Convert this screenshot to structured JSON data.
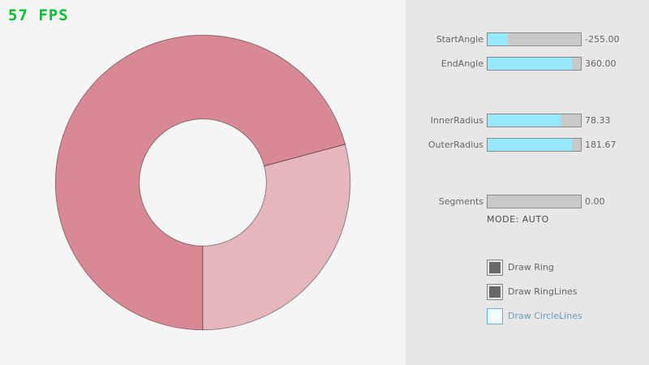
{
  "fps": "57 FPS",
  "ring": {
    "color_overlap": "#d98994",
    "color_single": "#e6b6bd",
    "outline": "rgba(0,0,0,0.4)"
  },
  "panel": {
    "sliders": [
      {
        "label": "StartAngle",
        "value": "-255.00",
        "fill_pct": 21.7
      },
      {
        "label": "EndAngle",
        "value": "360.00",
        "fill_pct": 90
      },
      {
        "label": "InnerRadius",
        "value": "78.33",
        "fill_pct": 78.3
      },
      {
        "label": "OuterRadius",
        "value": "181.67",
        "fill_pct": 90.8
      },
      {
        "label": "Segments",
        "value": "0.00",
        "fill_pct": 0
      }
    ],
    "mode_text": "MODE: AUTO",
    "checkboxes": [
      {
        "label": "Draw Ring",
        "checked": true,
        "focused": false
      },
      {
        "label": "Draw RingLines",
        "checked": true,
        "focused": false
      },
      {
        "label": "Draw CircleLines",
        "checked": false,
        "focused": true
      }
    ]
  },
  "colors": {
    "background": "#f5f5f5",
    "panel_background": "#e7e7e7",
    "fps_green": "#00c42a",
    "slider_track": "#c9c9c9",
    "slider_fill_cyan": "#97e8ff",
    "accent_blue": "#5bb2d9",
    "text_gray": "#666666"
  }
}
